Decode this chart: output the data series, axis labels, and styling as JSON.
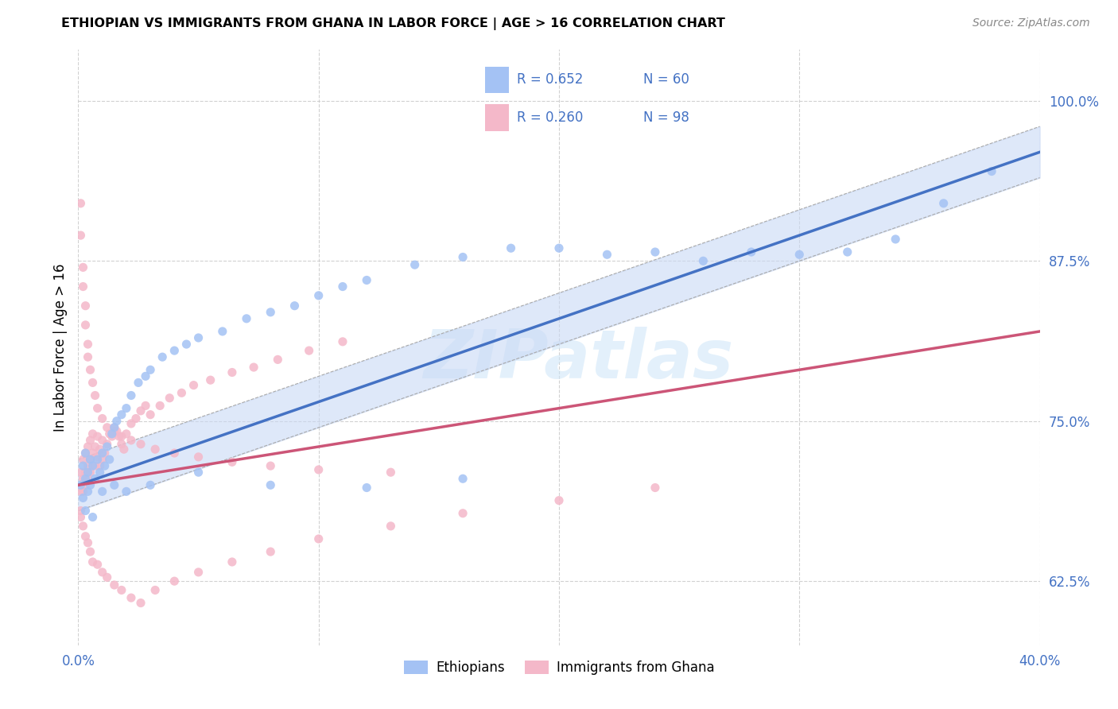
{
  "title": "ETHIOPIAN VS IMMIGRANTS FROM GHANA IN LABOR FORCE | AGE > 16 CORRELATION CHART",
  "source": "Source: ZipAtlas.com",
  "ylabel": "In Labor Force | Age > 16",
  "xlim": [
    0.0,
    0.4
  ],
  "ylim": [
    0.575,
    1.04
  ],
  "yticks": [
    0.625,
    0.75,
    0.875,
    1.0
  ],
  "ytick_labels": [
    "62.5%",
    "75.0%",
    "87.5%",
    "100.0%"
  ],
  "xticks": [
    0.0,
    0.1,
    0.2,
    0.3,
    0.4
  ],
  "xtick_labels": [
    "0.0%",
    "",
    "",
    "",
    "40.0%"
  ],
  "watermark": "ZIPatlas",
  "blue_color": "#a4c2f4",
  "pink_color": "#f4b8c9",
  "trend_blue": "#4472c4",
  "trend_pink": "#cc5577",
  "trend_ci_blue": "#c9d9f5",
  "legend_text_color": "#4472c4",
  "legend_label_blue": "Ethiopians",
  "legend_label_pink": "Immigrants from Ghana",
  "blue_R": "0.652",
  "blue_N": "60",
  "pink_R": "0.260",
  "pink_N": "98",
  "seed": 1234,
  "blue_x_raw": [
    0.001,
    0.002,
    0.002,
    0.003,
    0.003,
    0.004,
    0.004,
    0.005,
    0.005,
    0.006,
    0.007,
    0.008,
    0.009,
    0.01,
    0.011,
    0.012,
    0.013,
    0.014,
    0.015,
    0.016,
    0.018,
    0.02,
    0.022,
    0.025,
    0.028,
    0.03,
    0.035,
    0.04,
    0.045,
    0.05,
    0.06,
    0.07,
    0.08,
    0.09,
    0.1,
    0.11,
    0.12,
    0.14,
    0.16,
    0.18,
    0.2,
    0.22,
    0.24,
    0.26,
    0.28,
    0.3,
    0.32,
    0.34,
    0.36,
    0.38,
    0.003,
    0.006,
    0.01,
    0.015,
    0.02,
    0.03,
    0.05,
    0.08,
    0.12,
    0.16
  ],
  "blue_y_raw": [
    0.7,
    0.715,
    0.69,
    0.725,
    0.705,
    0.71,
    0.695,
    0.72,
    0.7,
    0.715,
    0.705,
    0.72,
    0.71,
    0.725,
    0.715,
    0.73,
    0.72,
    0.74,
    0.745,
    0.75,
    0.755,
    0.76,
    0.77,
    0.78,
    0.785,
    0.79,
    0.8,
    0.805,
    0.81,
    0.815,
    0.82,
    0.83,
    0.835,
    0.84,
    0.848,
    0.855,
    0.86,
    0.872,
    0.878,
    0.885,
    0.885,
    0.88,
    0.882,
    0.875,
    0.882,
    0.88,
    0.882,
    0.892,
    0.92,
    0.945,
    0.68,
    0.675,
    0.695,
    0.7,
    0.695,
    0.7,
    0.71,
    0.7,
    0.698,
    0.705
  ],
  "pink_x_raw": [
    0.001,
    0.001,
    0.001,
    0.002,
    0.002,
    0.002,
    0.003,
    0.003,
    0.003,
    0.004,
    0.004,
    0.004,
    0.005,
    0.005,
    0.005,
    0.006,
    0.006,
    0.007,
    0.007,
    0.008,
    0.008,
    0.009,
    0.009,
    0.01,
    0.01,
    0.011,
    0.012,
    0.013,
    0.014,
    0.015,
    0.016,
    0.017,
    0.018,
    0.019,
    0.02,
    0.022,
    0.024,
    0.026,
    0.028,
    0.03,
    0.034,
    0.038,
    0.043,
    0.048,
    0.055,
    0.064,
    0.073,
    0.083,
    0.096,
    0.11,
    0.001,
    0.002,
    0.003,
    0.004,
    0.005,
    0.006,
    0.008,
    0.01,
    0.012,
    0.015,
    0.018,
    0.022,
    0.026,
    0.032,
    0.04,
    0.05,
    0.064,
    0.08,
    0.1,
    0.13,
    0.16,
    0.2,
    0.24,
    0.001,
    0.001,
    0.002,
    0.002,
    0.003,
    0.003,
    0.004,
    0.004,
    0.005,
    0.006,
    0.007,
    0.008,
    0.01,
    0.012,
    0.015,
    0.018,
    0.022,
    0.026,
    0.032,
    0.04,
    0.05,
    0.064,
    0.08,
    0.1,
    0.13
  ],
  "pink_y_raw": [
    0.71,
    0.695,
    0.68,
    0.72,
    0.705,
    0.695,
    0.725,
    0.71,
    0.7,
    0.73,
    0.715,
    0.705,
    0.735,
    0.72,
    0.71,
    0.74,
    0.725,
    0.73,
    0.715,
    0.738,
    0.722,
    0.728,
    0.715,
    0.735,
    0.72,
    0.725,
    0.732,
    0.74,
    0.738,
    0.745,
    0.742,
    0.738,
    0.732,
    0.728,
    0.74,
    0.748,
    0.752,
    0.758,
    0.762,
    0.755,
    0.762,
    0.768,
    0.772,
    0.778,
    0.782,
    0.788,
    0.792,
    0.798,
    0.805,
    0.812,
    0.675,
    0.668,
    0.66,
    0.655,
    0.648,
    0.64,
    0.638,
    0.632,
    0.628,
    0.622,
    0.618,
    0.612,
    0.608,
    0.618,
    0.625,
    0.632,
    0.64,
    0.648,
    0.658,
    0.668,
    0.678,
    0.688,
    0.698,
    0.92,
    0.895,
    0.87,
    0.855,
    0.84,
    0.825,
    0.81,
    0.8,
    0.79,
    0.78,
    0.77,
    0.76,
    0.752,
    0.745,
    0.742,
    0.738,
    0.735,
    0.732,
    0.728,
    0.725,
    0.722,
    0.718,
    0.715,
    0.712,
    0.71
  ]
}
